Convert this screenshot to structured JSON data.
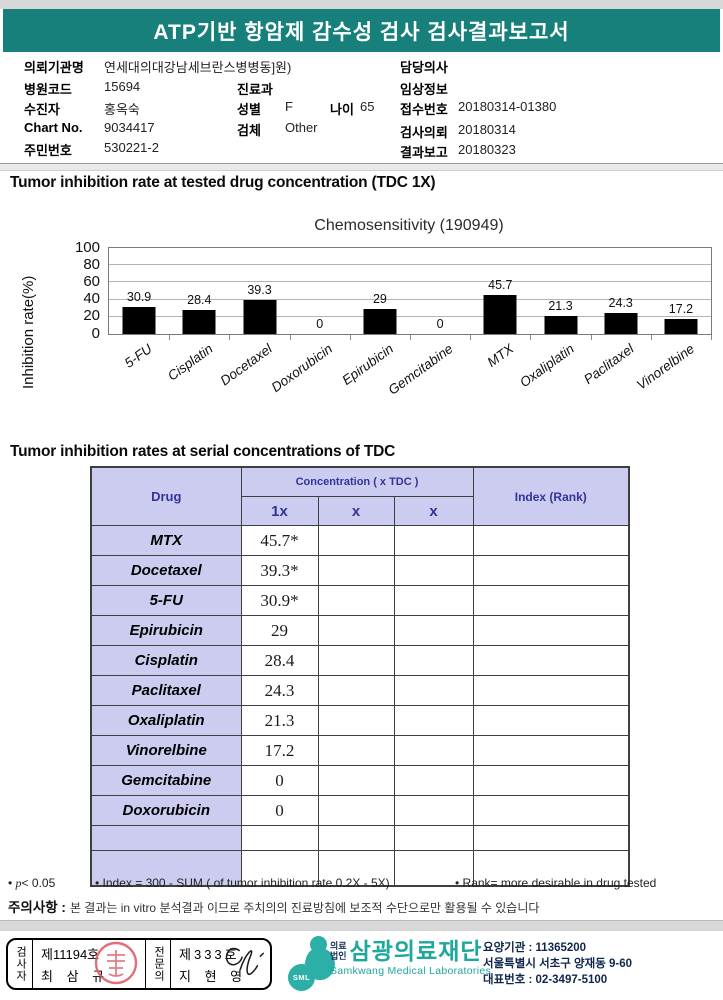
{
  "header": {
    "title": "ATP기반 항암제 감수성 검사 검사결과보고서"
  },
  "info": {
    "org_label": "의뢰기관명",
    "org_value": "연세대의대강남세브란스병병동]원)",
    "hosp_code_label": "병원코드",
    "hosp_code_value": "15694",
    "patient_label": "수진자",
    "patient_value": "홍옥숙",
    "chart_no_label": "Chart No.",
    "chart_no_value": "9034417",
    "resident_label": "주민번호",
    "resident_value": "530221-2",
    "dept_label": "진료과",
    "dept_value": "",
    "sex_label": "성별",
    "sex_value": "F",
    "age_label": "나이",
    "age_value": "65",
    "specimen_label": "검체",
    "specimen_value": "Other",
    "doctor_label": "담당의사",
    "doctor_value": "",
    "clinical_label": "임상정보",
    "clinical_value": "",
    "receipt_label": "접수번호",
    "receipt_value": "20180314-01380",
    "request_label": "검사의뢰",
    "request_value": "20180314",
    "report_label": "결과보고",
    "report_value": "20180323"
  },
  "section1": {
    "title": "Tumor inhibition rate at tested drug concentration (TDC 1X)"
  },
  "chart_data": {
    "type": "bar",
    "title": "Chemosensitivity (190949)",
    "ylabel": "Inhibition rate(%)",
    "categories": [
      "5-FU",
      "Cisplatin",
      "Docetaxel",
      "Doxorubicin",
      "Epirubicin",
      "Gemcitabine",
      "MTX",
      "Oxaliplatin",
      "Paclitaxel",
      "Vinorelbine"
    ],
    "values": [
      30.9,
      28.4,
      39.3,
      0,
      29,
      0,
      45.7,
      21.3,
      24.3,
      17.2
    ],
    "yticks": [
      100,
      80,
      60,
      40,
      20,
      0
    ],
    "ylim": [
      0,
      100
    ],
    "bar_color": "#000000",
    "grid": true,
    "legend": "none"
  },
  "section2": {
    "title": "Tumor inhibition rates at serial concentrations of TDC"
  },
  "table": {
    "col_drug": "Drug",
    "col_concentration": "Concentration ( x TDC )",
    "col_1x": "1x",
    "col_x2": "x",
    "col_x3": "x",
    "col_index": "Index (Rank)",
    "rows": [
      {
        "drug": "MTX",
        "v1x": "45.7*"
      },
      {
        "drug": "Docetaxel",
        "v1x": "39.3*"
      },
      {
        "drug": "5-FU",
        "v1x": "30.9*"
      },
      {
        "drug": "Epirubicin",
        "v1x": "29"
      },
      {
        "drug": "Cisplatin",
        "v1x": "28.4"
      },
      {
        "drug": "Paclitaxel",
        "v1x": "24.3"
      },
      {
        "drug": "Oxaliplatin",
        "v1x": "21.3"
      },
      {
        "drug": "Vinorelbine",
        "v1x": "17.2"
      },
      {
        "drug": "Gemcitabine",
        "v1x": "0"
      },
      {
        "drug": "Doxorubicin",
        "v1x": "0"
      },
      {
        "drug": "",
        "v1x": ""
      },
      {
        "drug": "",
        "v1x": ""
      }
    ]
  },
  "notes": {
    "bullet": "•",
    "p": "p",
    "p_rest": "< 0.05",
    "index_note": "• Index = 300 - SUM ( of tumor inhibition rate 0.2X  -  5X)",
    "rank_note": "• Rank= more desirable in drug tested"
  },
  "caution": {
    "label": "주의사항 :",
    "text": "본 결과는 in vitro 분석결과 이므로 주치의의 진료방침에 보조적 수단으로만 활용될 수 있습니다"
  },
  "footer": {
    "examiner_role": "검사자",
    "examiner_no": "제11194호",
    "examiner_name": "최 삼 규",
    "specialist_role": "전문의",
    "specialist_no": "제333호",
    "specialist_name": "지 현 영",
    "logo_sml": "SML",
    "corp_type1": "의료",
    "corp_type2": "법인",
    "corp_name": "삼광의료재단",
    "corp_eng": "Samkwang Medical Laboratories",
    "inst_line1": "요양기관 : 11365200",
    "inst_line2": "서울특별시 서초구 양재동 9-60",
    "inst_line3": "대표번호 : 02-3497-5100"
  },
  "colors": {
    "header_teal": "#18807b",
    "logo_teal": "#2bafa6",
    "table_header_bg": "#ccccf0",
    "table_header_text": "#333399",
    "seal_red": "#dd5560",
    "bar_black": "#000000"
  }
}
